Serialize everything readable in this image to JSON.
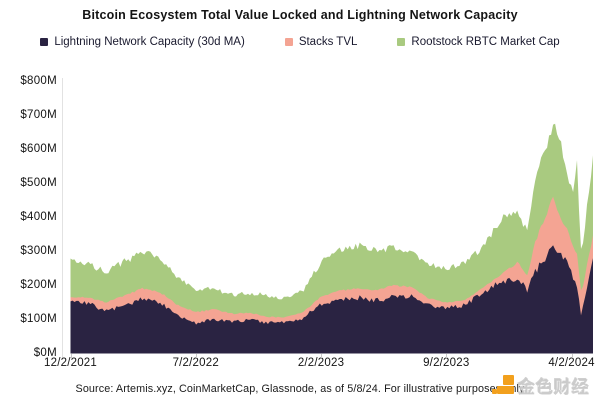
{
  "header": {
    "title": "Bitcoin Ecosystem Total Value Locked and Lightning Network Capacity"
  },
  "legend": {
    "items": [
      {
        "label": "Lightning Network Capacity (30d MA)",
        "color": "#2a2342"
      },
      {
        "label": "Stacks TVL",
        "color": "#f4a493"
      },
      {
        "label": "Rootstock RBTC Market Cap",
        "color": "#a9ca80"
      }
    ]
  },
  "chart_data": {
    "type": "area",
    "stacked": true,
    "title": "Bitcoin Ecosystem Total Value Locked and Lightning Network Capacity",
    "unit": "USD millions",
    "ylim": [
      0,
      800
    ],
    "y_tick_labels": [
      "$800M",
      "$700M",
      "$600M",
      "$500M",
      "$400M",
      "$300M",
      "$200M",
      "$100M",
      "$0M"
    ],
    "x_tick_labels": [
      "12/2/2021",
      "7/2/2022",
      "2/2/2023",
      "9/2/2023",
      "4/2/2024"
    ],
    "x_unit": "months since 12/2/2021, through 5/8/2024",
    "x": [
      0,
      1,
      2,
      3,
      4,
      5,
      6,
      7,
      8,
      9,
      10,
      11,
      12,
      13,
      14,
      15,
      16,
      17,
      18,
      19,
      20,
      21,
      22,
      23,
      24,
      25,
      25.5,
      26,
      27,
      27.3,
      27.8,
      28.1,
      28.3,
      28.55,
      29.2
    ],
    "series": [
      {
        "name": "Lightning Network Capacity (30d MA)",
        "color": "#2a2342",
        "values": [
          153,
          147,
          124,
          141,
          162,
          150,
          110,
          88,
          100,
          92,
          100,
          90,
          91,
          103,
          147,
          156,
          165,
          156,
          165,
          171,
          141,
          132,
          141,
          176,
          209,
          223,
          185,
          244,
          310,
          303,
          265,
          215,
          195,
          112,
          280
        ]
      },
      {
        "name": "Stacks TVL",
        "color": "#f4a493",
        "values": [
          12,
          18,
          26,
          28,
          29,
          30,
          32,
          33,
          30,
          25,
          20,
          18,
          15,
          18,
          20,
          28,
          26,
          30,
          35,
          25,
          21,
          18,
          15,
          15,
          20,
          45,
          40,
          88,
          155,
          103,
          97,
          95,
          100,
          62,
          67
        ]
      },
      {
        "name": "Rootstock RBTC Market Cap",
        "color": "#a9ca80",
        "values": [
          114,
          97,
          90,
          101,
          103,
          105,
          78,
          64,
          60,
          55,
          56,
          63,
          56,
          64,
          101,
          119,
          127,
          117,
          109,
          101,
          97,
          100,
          112,
          118,
          162,
          147,
          137,
          191,
          200,
          244,
          161,
          150,
          265,
          104,
          235
        ]
      }
    ],
    "legend_position": "top",
    "grid": false
  },
  "footer": {
    "source": "Source: Artemis.xyz, CoinMarketCap, Glassnode, as of 5/8/24. For illustrative purposes only"
  },
  "watermark": {
    "text": "金色财经",
    "logo_color": "#f2a01d"
  }
}
